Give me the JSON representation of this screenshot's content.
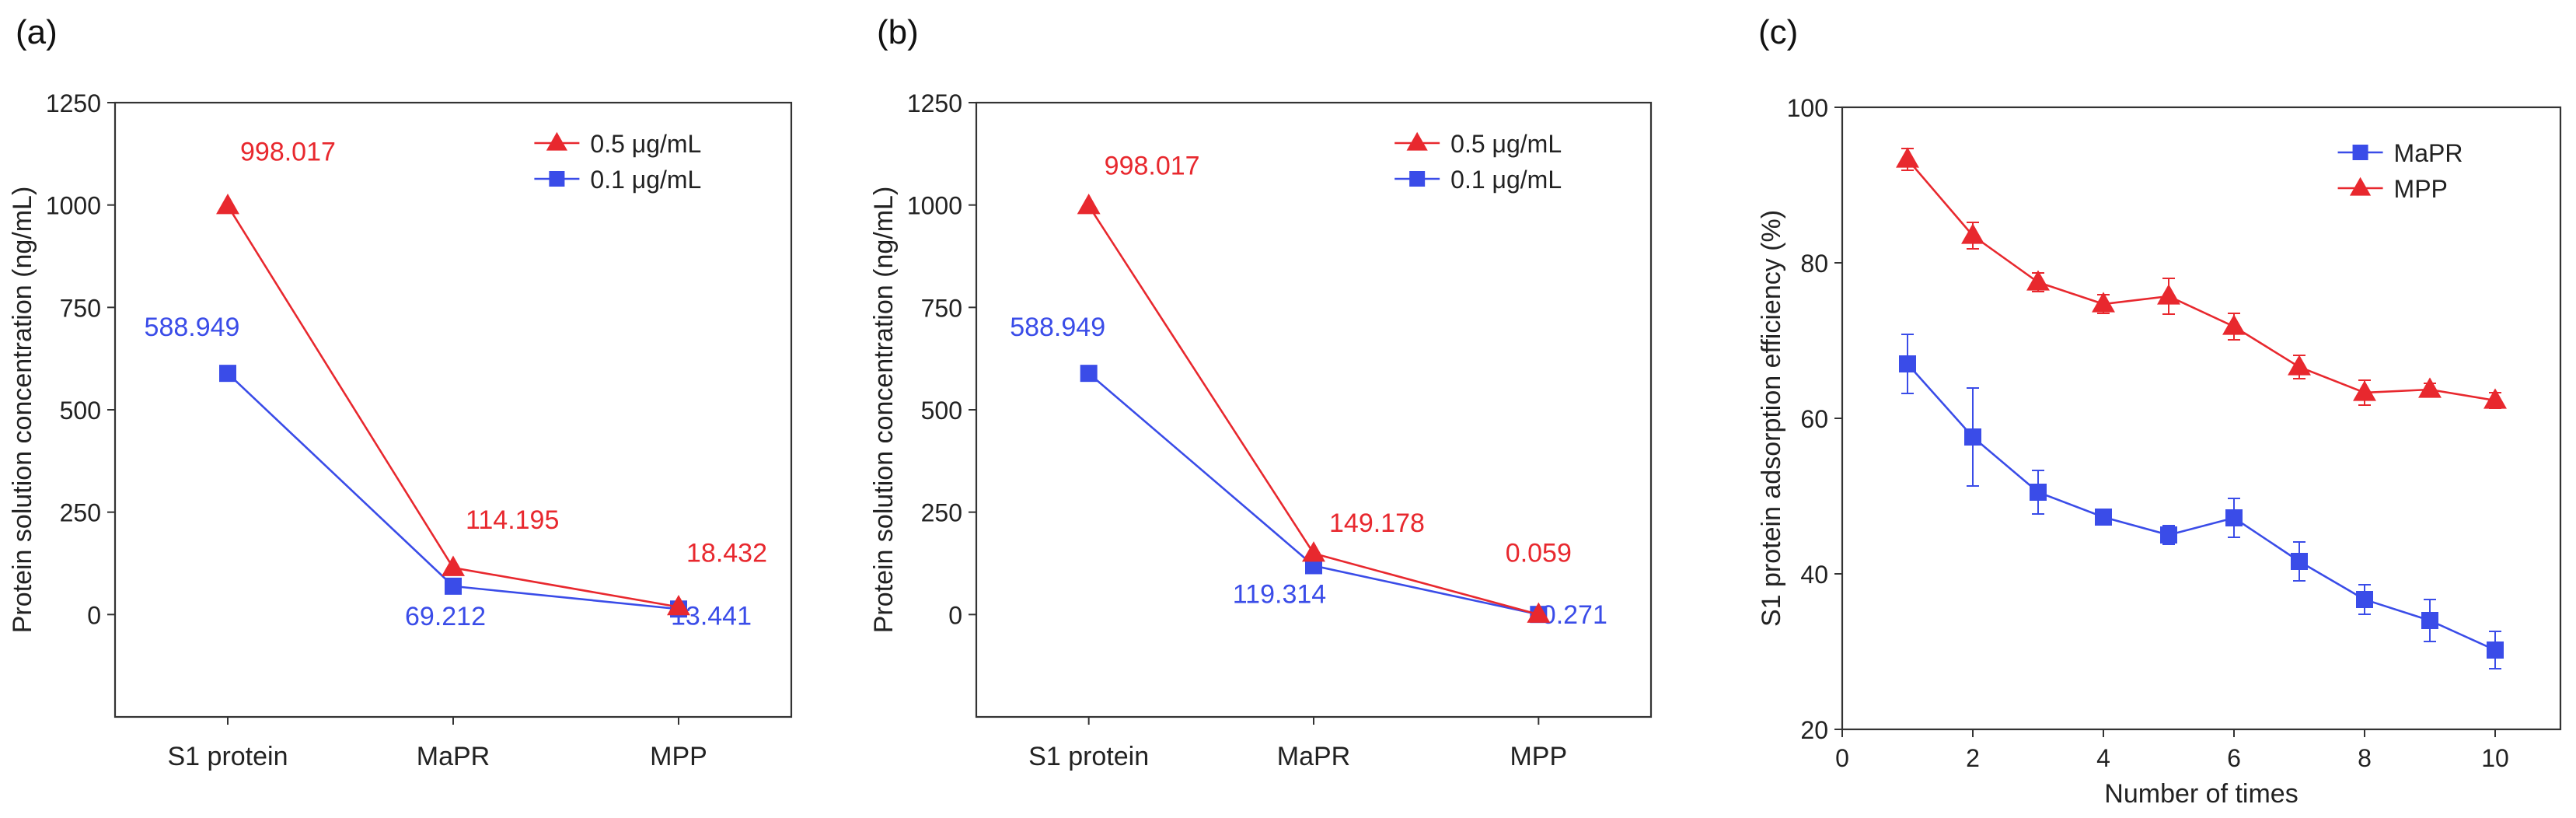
{
  "panels": [
    {
      "label": "(a)",
      "ylabel": "Protein solution concentration (ng/mL)",
      "xlabel": "",
      "ylim": [
        -250,
        1250
      ],
      "yticks": [
        0,
        250,
        500,
        750,
        1000,
        1250
      ],
      "categories": [
        "S1 protein",
        "MaPR",
        "MPP"
      ],
      "legend": [
        {
          "name": "0.5 μg/mL",
          "color": "#e8282e",
          "marker": "triangle"
        },
        {
          "name": "0.1 μg/mL",
          "color": "#3a4ce8",
          "marker": "square"
        }
      ]
    },
    {
      "label": "(b)",
      "ylabel": "Protein solution concentration (ng/mL)",
      "xlabel": "",
      "ylim": [
        -250,
        1250
      ],
      "yticks": [
        0,
        250,
        500,
        750,
        1000,
        1250
      ],
      "categories": [
        "S1 protein",
        "MaPR",
        "MPP"
      ],
      "legend": [
        {
          "name": "0.5 μg/mL",
          "color": "#e8282e",
          "marker": "triangle"
        },
        {
          "name": "0.1 μg/mL",
          "color": "#3a4ce8",
          "marker": "square"
        }
      ]
    },
    {
      "label": "(c)",
      "ylabel": "S1 protein adsorption efficiency (%)",
      "xlabel": "Number of times",
      "ylim": [
        20,
        100
      ],
      "yticks": [
        20,
        40,
        60,
        80,
        100
      ],
      "xlim": [
        0,
        11
      ],
      "xticks": [
        0,
        2,
        4,
        6,
        8,
        10
      ],
      "legend": [
        {
          "name": "MaPR",
          "color": "#3a4ce8",
          "marker": "square"
        },
        {
          "name": "MPP",
          "color": "#e8282e",
          "marker": "triangle"
        }
      ]
    }
  ],
  "chart_data": [
    {
      "type": "line",
      "title": "(a)",
      "xlabel": "",
      "ylabel": "Protein solution concentration (ng/mL)",
      "categories": [
        "S1 protein",
        "MaPR",
        "MPP"
      ],
      "ylim": [
        -250,
        1250
      ],
      "series": [
        {
          "name": "0.5 μg/mL",
          "values": [
            998.017,
            114.195,
            18.432
          ],
          "labels": [
            "998.017",
            "114.195",
            "18.432"
          ]
        },
        {
          "name": "0.1 μg/mL",
          "values": [
            588.949,
            69.212,
            13.441
          ],
          "labels": [
            "588.949",
            "69.212",
            "13.441"
          ]
        }
      ]
    },
    {
      "type": "line",
      "title": "(b)",
      "xlabel": "",
      "ylabel": "Protein solution concentration (ng/mL)",
      "categories": [
        "S1 protein",
        "MaPR",
        "MPP"
      ],
      "ylim": [
        -250,
        1250
      ],
      "series": [
        {
          "name": "0.5 μg/mL",
          "values": [
            998.017,
            149.178,
            0.059
          ],
          "labels": [
            "998.017",
            "149.178",
            "0.059"
          ]
        },
        {
          "name": "0.1 μg/mL",
          "values": [
            588.949,
            119.314,
            0.271
          ],
          "labels": [
            "588.949",
            "119.314",
            "0.271"
          ]
        }
      ]
    },
    {
      "type": "line",
      "title": "(c)",
      "xlabel": "Number of times",
      "ylabel": "S1 protein adsorption efficiency (%)",
      "x": [
        1,
        2,
        3,
        4,
        5,
        6,
        7,
        8,
        9,
        10
      ],
      "xlim": [
        0,
        11
      ],
      "ylim": [
        20,
        100
      ],
      "series": [
        {
          "name": "MaPR",
          "values": [
            67,
            57.6,
            50.5,
            47.3,
            45,
            47.2,
            41.6,
            36.7,
            34,
            30.2
          ],
          "errors": [
            3.8,
            6.3,
            2.8,
            1,
            1.2,
            2.5,
            2.5,
            1.9,
            2.7,
            2.4
          ]
        },
        {
          "name": "MPP",
          "values": [
            93.3,
            83.5,
            77.5,
            74.7,
            75.7,
            71.8,
            66.6,
            63.3,
            63.7,
            62.3
          ],
          "errors": [
            1.4,
            1.7,
            1.2,
            1.2,
            2.3,
            1.7,
            1.5,
            1.6,
            0.8,
            1
          ]
        }
      ]
    }
  ]
}
